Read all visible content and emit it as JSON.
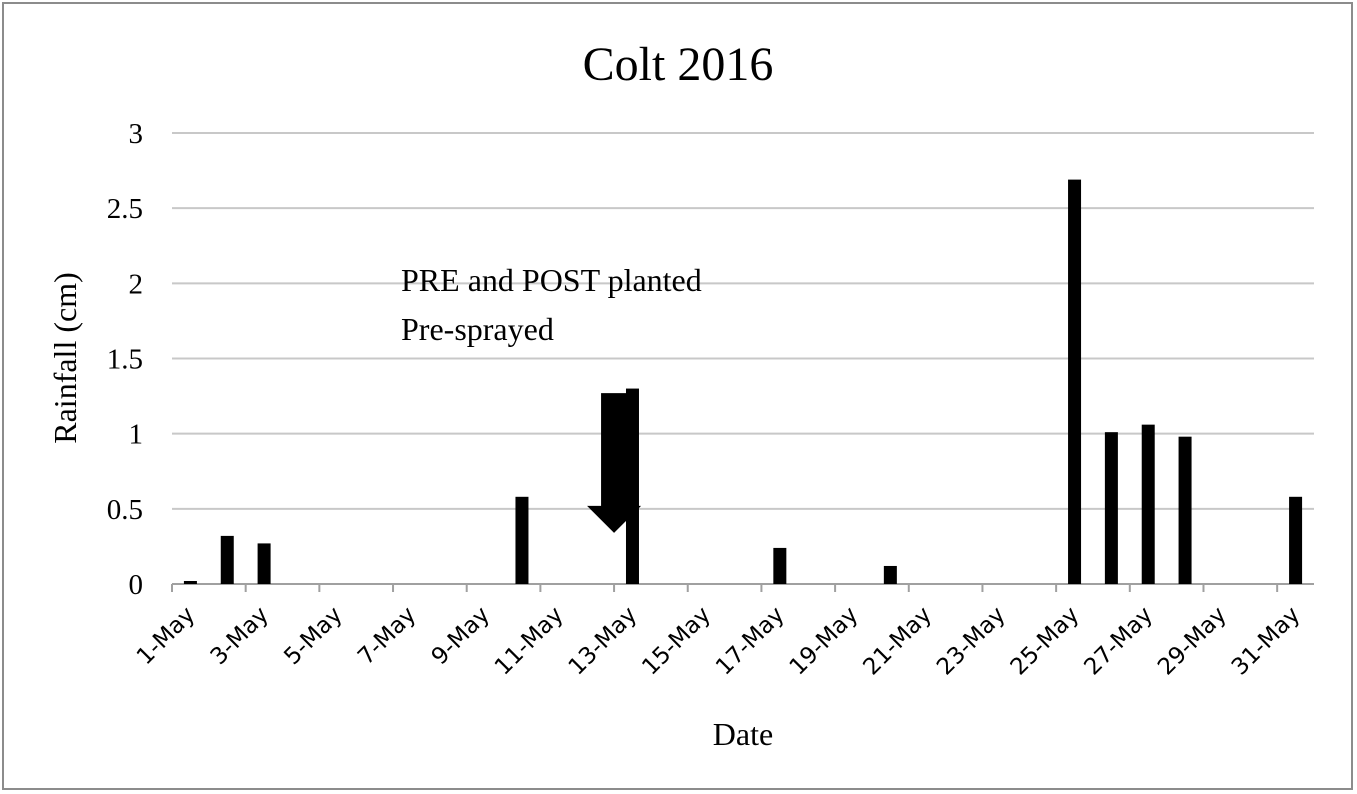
{
  "chart_data": {
    "type": "bar",
    "title": "Colt 2016",
    "xlabel": "Date",
    "ylabel": "Rainfall (cm)",
    "ylim": [
      0,
      3
    ],
    "yticks": [
      "0",
      "0.5",
      "1",
      "1.5",
      "2",
      "2.5",
      "3"
    ],
    "grid": true,
    "legend": "none",
    "bar_color": "#000000",
    "grid_color": "#c8c8c8",
    "categories": [
      "1-May",
      "2-May",
      "3-May",
      "4-May",
      "5-May",
      "6-May",
      "7-May",
      "8-May",
      "9-May",
      "10-May",
      "11-May",
      "12-May",
      "13-May",
      "14-May",
      "15-May",
      "16-May",
      "17-May",
      "18-May",
      "19-May",
      "20-May",
      "21-May",
      "22-May",
      "23-May",
      "24-May",
      "25-May",
      "26-May",
      "27-May",
      "28-May",
      "29-May",
      "30-May",
      "31-May"
    ],
    "tick_labels": [
      "1-May",
      "3-May",
      "5-May",
      "7-May",
      "9-May",
      "11-May",
      "13-May",
      "15-May",
      "17-May",
      "19-May",
      "21-May",
      "23-May",
      "25-May",
      "27-May",
      "29-May",
      "31-May"
    ],
    "values": [
      0.02,
      0.32,
      0.27,
      0,
      0,
      0,
      0,
      0,
      0,
      0.58,
      0,
      0,
      1.3,
      0,
      0,
      0,
      0.24,
      0,
      0,
      0.12,
      0,
      0,
      0,
      0,
      2.69,
      1.01,
      1.06,
      0.98,
      0,
      0,
      0.58
    ],
    "annotations": {
      "line1": "PRE and POST planted",
      "line2": "Pre-sprayed",
      "arrow_date": "12-May",
      "arrow_top_value": 1.27,
      "arrow_tip_value": 0.34
    }
  }
}
